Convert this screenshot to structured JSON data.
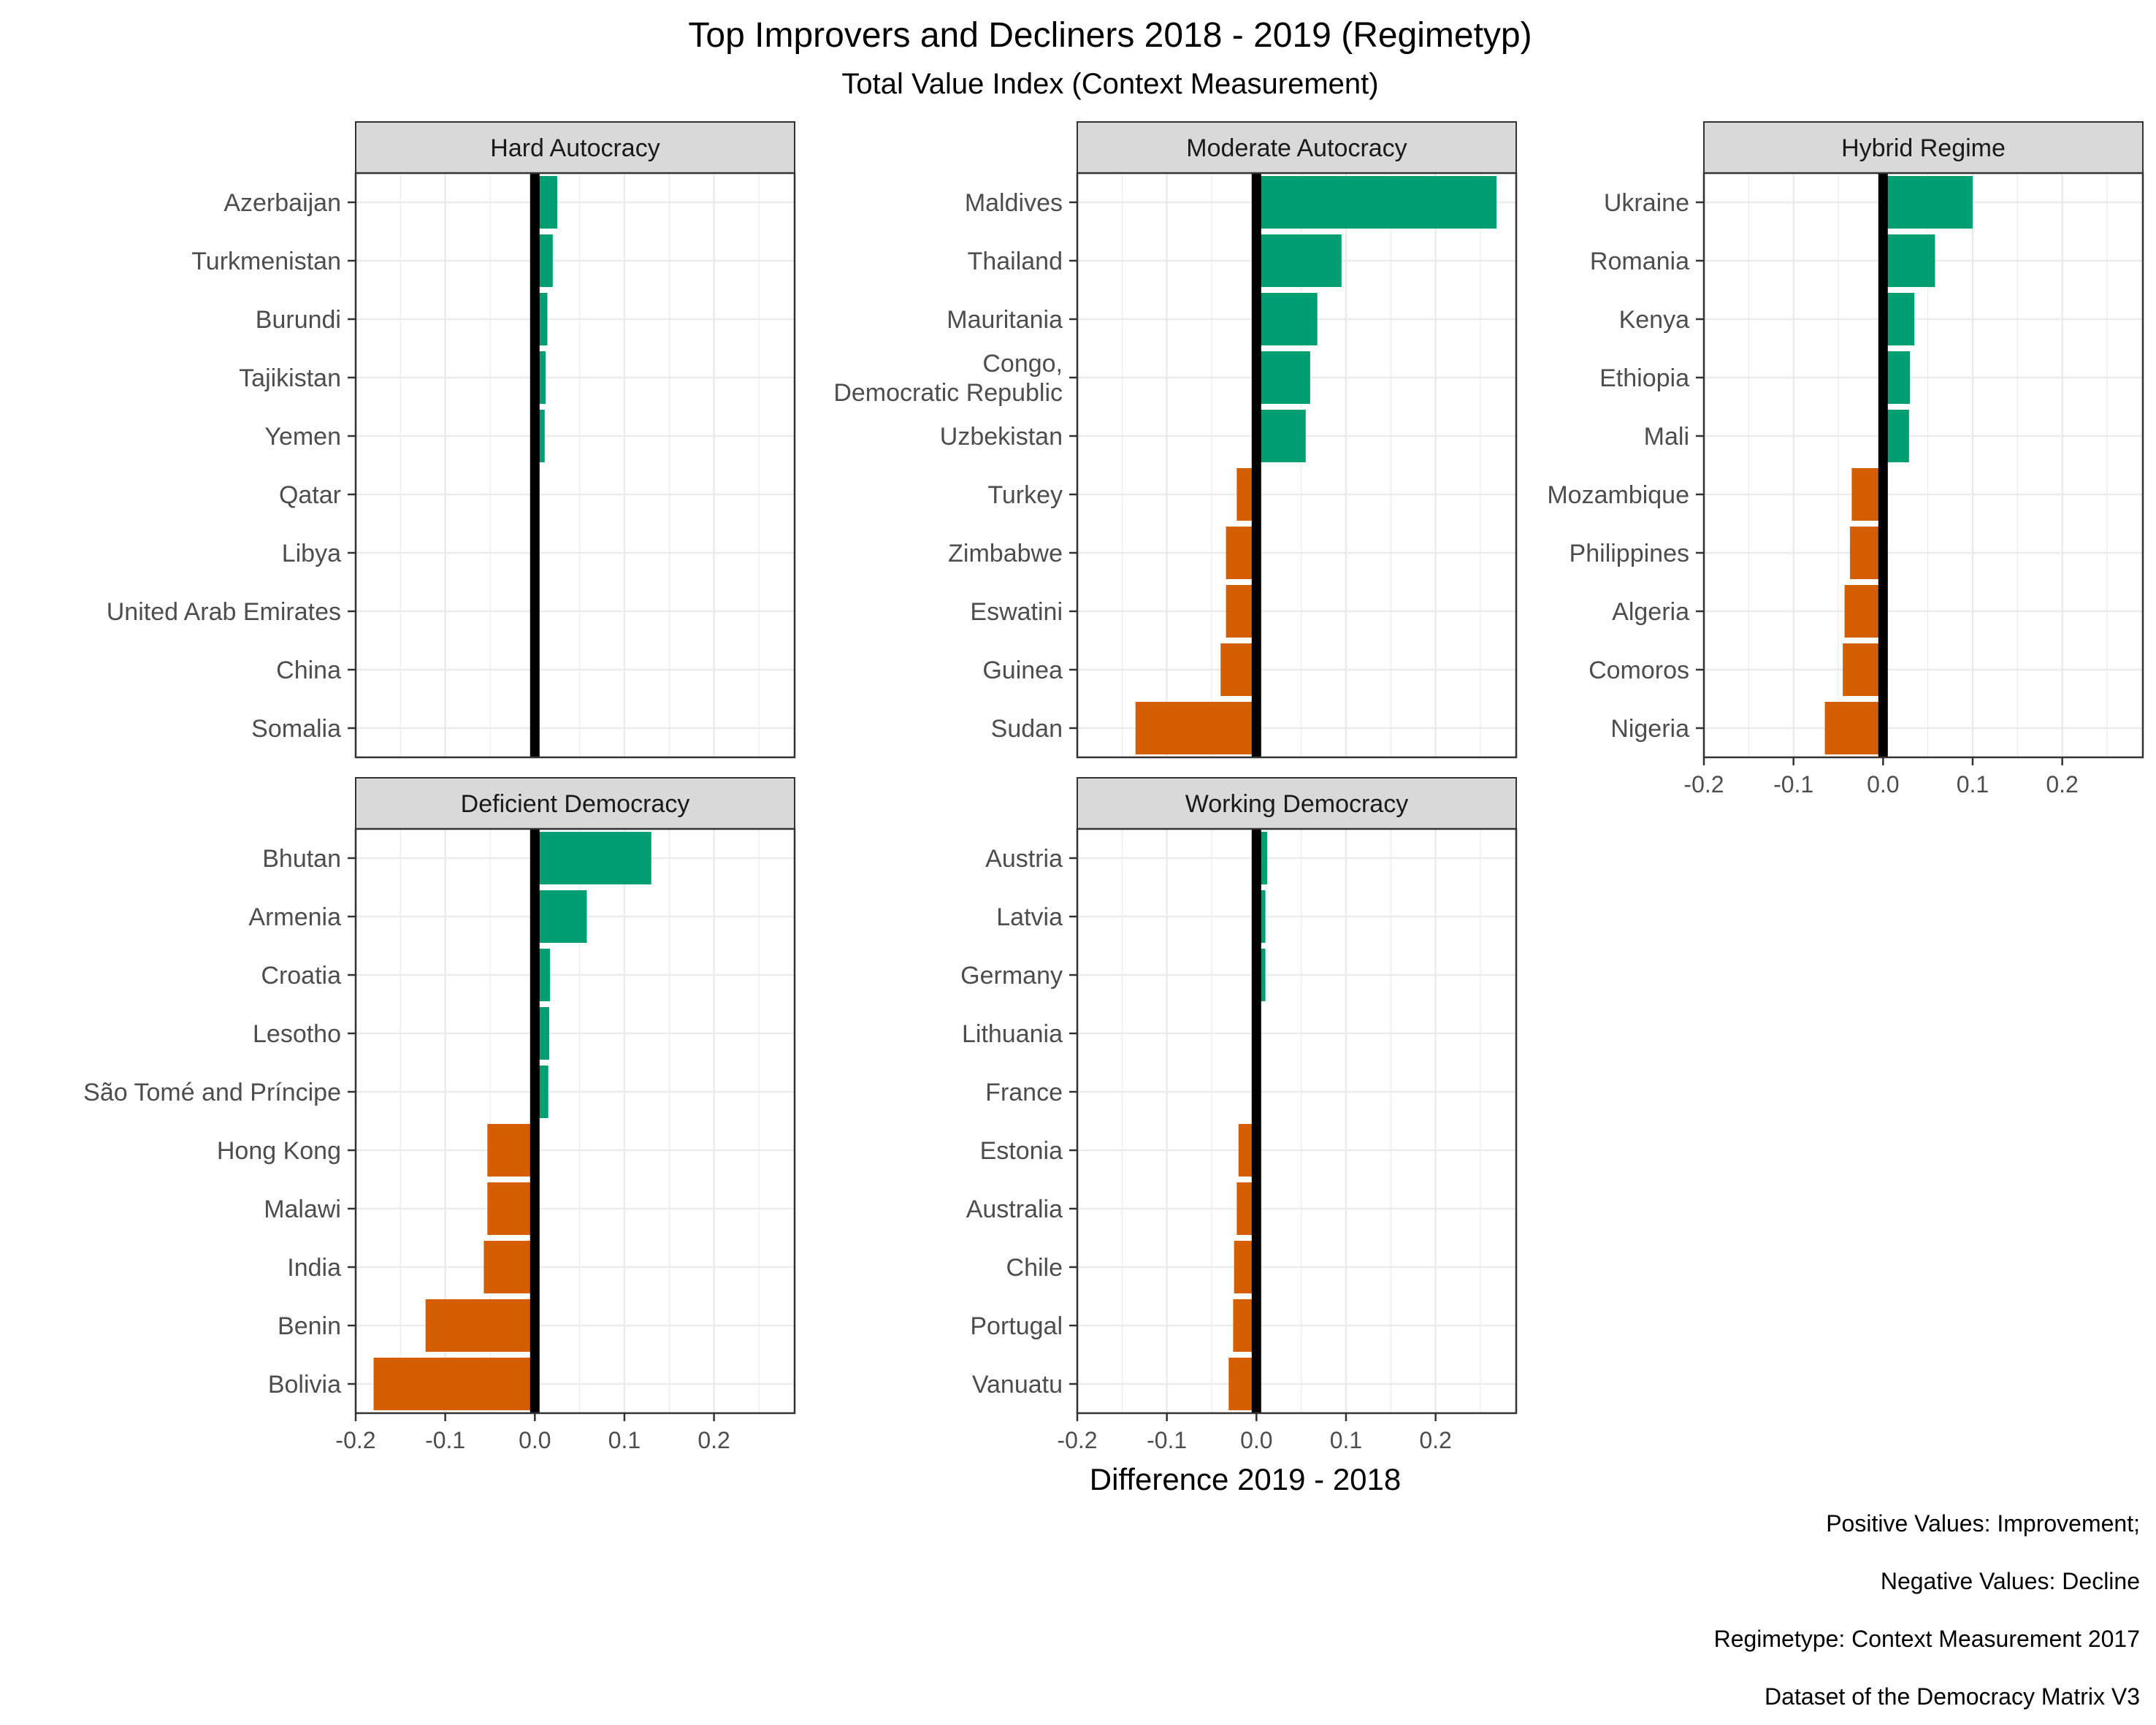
{
  "chart_data": {
    "type": "bar",
    "orientation": "horizontal",
    "title": "Top Improvers and Decliners 2018 - 2019 (Regimetyp)",
    "subtitle": "Total Value Index (Context Measurement)",
    "xlabel": "Difference 2019 - 2018",
    "xlim": [
      -0.2,
      0.29
    ],
    "xticks": [
      -0.2,
      -0.1,
      0.0,
      0.1,
      0.2
    ],
    "xtick_labels": [
      "-0.2",
      "-0.1",
      "0.0",
      "0.1",
      "0.2"
    ],
    "grid": true,
    "colors": {
      "positive": "#009E73",
      "negative": "#D55E00",
      "zero_line": "#000000",
      "strip": "#D9D9D9",
      "grid": "#EBEBEB"
    },
    "caption": [
      "Positive Values: Improvement;",
      "Negative Values: Decline",
      "Regimetype: Context Measurement 2017",
      "Dataset of the Democracy Matrix V3"
    ],
    "facets": [
      {
        "title": "Hard Autocracy",
        "categories": [
          "Azerbaijan",
          "Turkmenistan",
          "Burundi",
          "Tajikistan",
          "Yemen",
          "Qatar",
          "Libya",
          "United Arab Emirates",
          "China",
          "Somalia"
        ],
        "values": [
          0.025,
          0.02,
          0.014,
          0.012,
          0.011,
          0.0,
          0.0,
          0.0,
          0.0,
          -0.003
        ]
      },
      {
        "title": "Moderate Autocracy",
        "categories": [
          "Maldives",
          "Thailand",
          "Mauritania",
          "Congo,\nDemocratic Republic",
          "Uzbekistan",
          "Turkey",
          "Zimbabwe",
          "Eswatini",
          "Guinea",
          "Sudan"
        ],
        "values": [
          0.268,
          0.095,
          0.068,
          0.06,
          0.055,
          -0.022,
          -0.034,
          -0.034,
          -0.04,
          -0.135
        ]
      },
      {
        "title": "Hybrid Regime",
        "categories": [
          "Ukraine",
          "Romania",
          "Kenya",
          "Ethiopia",
          "Mali",
          "Mozambique",
          "Philippines",
          "Algeria",
          "Comoros",
          "Nigeria"
        ],
        "values": [
          0.1,
          0.058,
          0.035,
          0.03,
          0.029,
          -0.035,
          -0.037,
          -0.043,
          -0.045,
          -0.065
        ]
      },
      {
        "title": "Deficient Democracy",
        "categories": [
          "Bhutan",
          "Armenia",
          "Croatia",
          "Lesotho",
          "São Tomé and Príncipe",
          "Hong Kong",
          "Malawi",
          "India",
          "Benin",
          "Bolivia"
        ],
        "values": [
          0.13,
          0.058,
          0.017,
          0.016,
          0.015,
          -0.053,
          -0.053,
          -0.057,
          -0.122,
          -0.18
        ]
      },
      {
        "title": "Working Democracy",
        "categories": [
          "Austria",
          "Latvia",
          "Germany",
          "Lithuania",
          "France",
          "Estonia",
          "Australia",
          "Chile",
          "Portugal",
          "Vanuatu"
        ],
        "values": [
          0.012,
          0.01,
          0.01,
          0.0,
          0.0,
          -0.02,
          -0.022,
          -0.025,
          -0.026,
          -0.031
        ]
      }
    ]
  }
}
